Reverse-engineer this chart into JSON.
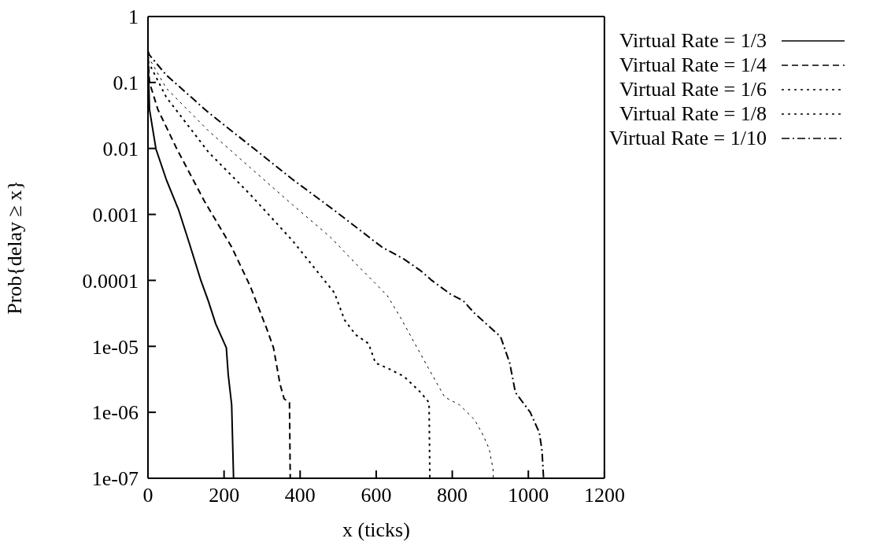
{
  "chart_data": {
    "type": "line",
    "xlabel": "x (ticks)",
    "ylabel": "Prob{delay ≥ x}",
    "log": "y",
    "grid": false,
    "legend": "top right",
    "marker": "none",
    "xlim": [
      0,
      1200
    ],
    "xticks": [
      0,
      200,
      400,
      600,
      800,
      1000,
      1200
    ],
    "ylim": [
      1e-07,
      1
    ],
    "yticks": [
      {
        "value": 1,
        "label": "1"
      },
      {
        "value": 0.1,
        "label": "0.1"
      },
      {
        "value": 0.01,
        "label": "0.01"
      },
      {
        "value": 0.001,
        "label": "0.001"
      },
      {
        "value": 0.0001,
        "label": "0.0001"
      },
      {
        "value": 1e-05,
        "label": "1e-05"
      },
      {
        "value": 1e-06,
        "label": "1e-06"
      },
      {
        "value": 1e-07,
        "label": "1e-07"
      }
    ],
    "series": [
      {
        "name": "Virtual Rate = 1/3",
        "color": "#000000",
        "line_style": "solid",
        "x": [
          0,
          4,
          21,
          48,
          81,
          109,
          139,
          159,
          178,
          206,
          211,
          220,
          225
        ],
        "values": [
          0.26,
          0.039,
          0.0098,
          0.0034,
          0.00115,
          0.00036,
          0.0001,
          4.8e-05,
          2.2e-05,
          9.5e-06,
          3.7e-06,
          1.3e-06,
          1e-07
        ]
      },
      {
        "name": "Virtual Rate = 1/4",
        "color": "#000000",
        "line_style": "dashed",
        "x": [
          0,
          4,
          26,
          76,
          148,
          220,
          269,
          313,
          330,
          347,
          358,
          372,
          374
        ],
        "values": [
          0.25,
          0.1,
          0.039,
          0.0098,
          0.0016,
          0.00032,
          8.1e-05,
          1.8e-05,
          9.5e-06,
          2.7e-06,
          1.6e-06,
          1.4e-06,
          1e-07
        ]
      },
      {
        "name": "Virtual Rate = 1/6",
        "color": "#000000",
        "line_style": "dotted",
        "x": [
          0,
          48,
          159,
          269,
          380,
          490,
          517,
          546,
          580,
          598,
          629,
          673,
          717,
          739,
          741
        ],
        "values": [
          0.21,
          0.06,
          0.0088,
          0.002,
          0.0004,
          6.5e-05,
          2.5e-05,
          1.5e-05,
          1.1e-05,
          5.6e-06,
          4.7e-06,
          3.5e-06,
          2e-06,
          1.4e-06,
          1e-07
        ]
      },
      {
        "name": "Virtual Rate = 1/8",
        "color": "#000000",
        "line_style": "dotted",
        "x": [
          0,
          48,
          159,
          269,
          380,
          480,
          546,
          629,
          663,
          698,
          737,
          780,
          819,
          858,
          878,
          897,
          907,
          908
        ],
        "values": [
          0.25,
          0.082,
          0.0185,
          0.0051,
          0.0014,
          0.00045,
          0.00018,
          5.9e-05,
          2.8e-05,
          1.2e-05,
          4.7e-06,
          1.7e-06,
          1.3e-06,
          7.8e-07,
          4.9e-07,
          2.8e-07,
          1.4e-07,
          1e-07
        ]
      },
      {
        "name": "Virtual Rate = 1/10",
        "color": "#000000",
        "line_style": "dashdot",
        "x": [
          0,
          4,
          48,
          159,
          269,
          380,
          490,
          615,
          673,
          717,
          746,
          795,
          829,
          858,
          897,
          927,
          951,
          966,
          1005,
          1029,
          1036,
          1040
        ],
        "values": [
          0.3,
          0.26,
          0.13,
          0.035,
          0.011,
          0.0034,
          0.00115,
          0.00032,
          0.00021,
          0.00014,
          0.0001,
          6.2e-05,
          4.9e-05,
          3.2e-05,
          2e-05,
          1.4e-05,
          5.6e-06,
          2e-06,
          1e-06,
          4.9e-07,
          2.6e-07,
          1e-07
        ]
      }
    ]
  }
}
